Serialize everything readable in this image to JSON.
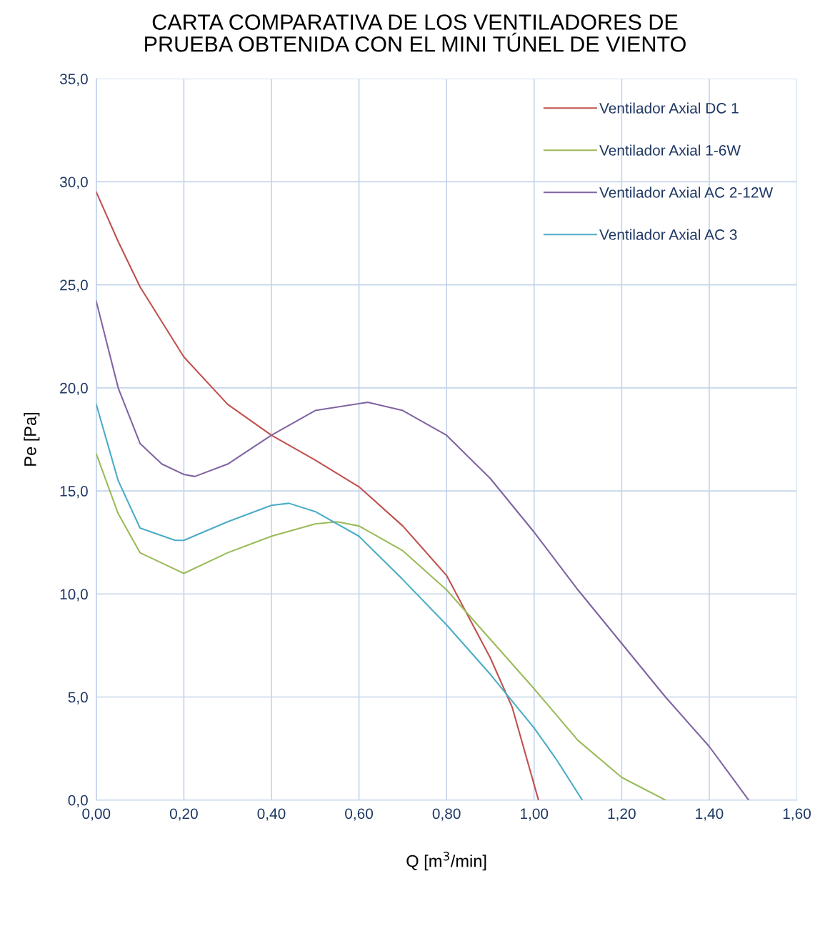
{
  "chart_data": {
    "type": "line",
    "title": "CARTA COMPARATIVA DE LOS VENTILADORES DE\nPRUEBA OBTENIDA CON EL MINI TÚNEL DE VIENTO",
    "xlabel": "Q [m$^{3}$/min]",
    "ylabel": "Pe [Pa]",
    "xlim": [
      0,
      1.6
    ],
    "ylim": [
      0,
      35
    ],
    "xticks": [
      {
        "value": 0,
        "label": "0,00"
      },
      {
        "value": 0.2,
        "label": "0,20"
      },
      {
        "value": 0.4,
        "label": "0,40"
      },
      {
        "value": 0.6,
        "label": "0,60"
      },
      {
        "value": 0.8,
        "label": "0,80"
      },
      {
        "value": 1.0,
        "label": "1,00"
      },
      {
        "value": 1.2,
        "label": "1,20"
      },
      {
        "value": 1.4,
        "label": "1,40"
      },
      {
        "value": 1.6,
        "label": "1,60"
      }
    ],
    "yticks": [
      {
        "value": 0,
        "label": "0,0"
      },
      {
        "value": 5,
        "label": "5,0"
      },
      {
        "value": 10,
        "label": "10,0"
      },
      {
        "value": 15,
        "label": "15,0"
      },
      {
        "value": 20,
        "label": "20,0"
      },
      {
        "value": 25,
        "label": "25,0"
      },
      {
        "value": 30,
        "label": "30,0"
      },
      {
        "value": 35,
        "label": "35,0"
      }
    ],
    "grid": true,
    "legend": "top right",
    "marker": "none",
    "line_style": "solid",
    "series": [
      {
        "name": "Ventilador Axial DC 1",
        "color": "#c0504d",
        "x": [
          0,
          0.05,
          0.1,
          0.2,
          0.3,
          0.4,
          0.5,
          0.6,
          0.7,
          0.8,
          0.9,
          0.95,
          1.01
        ],
        "values": [
          29.5,
          27.1,
          24.9,
          21.5,
          19.2,
          17.7,
          16.5,
          15.2,
          13.3,
          10.9,
          6.9,
          4.5,
          0
        ]
      },
      {
        "name": "Ventilador Axial 1-6W",
        "color": "#9bbb59",
        "x": [
          0,
          0.05,
          0.1,
          0.2,
          0.3,
          0.4,
          0.5,
          0.55,
          0.6,
          0.7,
          0.8,
          0.9,
          1.0,
          1.1,
          1.2,
          1.3
        ],
        "values": [
          16.8,
          13.9,
          12.0,
          11.0,
          12.0,
          12.8,
          13.4,
          13.5,
          13.3,
          12.1,
          10.2,
          7.8,
          5.4,
          2.9,
          1.1,
          0
        ]
      },
      {
        "name": "Ventilador Axial AC 2-12W",
        "color": "#8064a2",
        "x": [
          0,
          0.05,
          0.1,
          0.15,
          0.2,
          0.225,
          0.3,
          0.4,
          0.5,
          0.62,
          0.7,
          0.8,
          0.9,
          1.0,
          1.1,
          1.2,
          1.3,
          1.4,
          1.49
        ],
        "values": [
          24.2,
          20.0,
          17.3,
          16.3,
          15.8,
          15.7,
          16.3,
          17.7,
          18.9,
          19.3,
          18.9,
          17.7,
          15.6,
          13.0,
          10.2,
          7.6,
          5.0,
          2.6,
          0
        ]
      },
      {
        "name": "Ventilador Axial AC 3",
        "color": "#4bacc6",
        "x": [
          0,
          0.05,
          0.1,
          0.18,
          0.2,
          0.3,
          0.4,
          0.44,
          0.5,
          0.6,
          0.7,
          0.8,
          0.9,
          1.0,
          1.05,
          1.11
        ],
        "values": [
          19.2,
          15.5,
          13.2,
          12.6,
          12.6,
          13.5,
          14.3,
          14.4,
          14.0,
          12.8,
          10.7,
          8.5,
          6.1,
          3.5,
          2.0,
          0
        ]
      }
    ]
  }
}
